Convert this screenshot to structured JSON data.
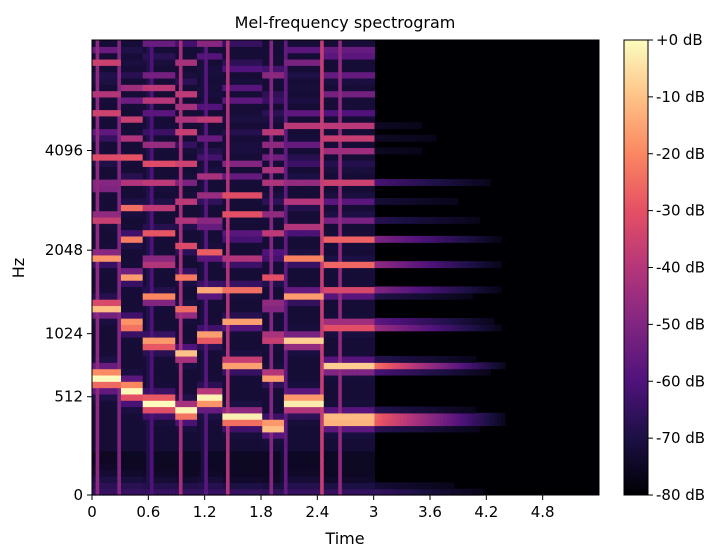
{
  "chart_data": {
    "type": "heatmap",
    "title": "Mel-frequency spectrogram",
    "xlabel": "Time",
    "ylabel": "Hz",
    "x_ticks": [
      0,
      0.6,
      1.2,
      1.8,
      2.4,
      3.0,
      3.6,
      4.2,
      4.8
    ],
    "x_tick_labels": [
      "0",
      "0.6",
      "1.2",
      "1.8",
      "2.4",
      "3",
      "3.6",
      "4.2",
      "4.8"
    ],
    "xlim": [
      0,
      5.4
    ],
    "y_scale": "mel",
    "y_ticks": [
      0,
      512,
      1024,
      2048,
      4096
    ],
    "y_tick_labels": [
      "0",
      "512",
      "1024",
      "2048",
      "4096"
    ],
    "ylim": [
      0,
      8192
    ],
    "colormap": "magma",
    "colorbar": {
      "ticks": [
        0,
        -10,
        -20,
        -30,
        -40,
        -50,
        -60,
        -70,
        -80
      ],
      "tick_labels": [
        "+0 dB",
        "-10 dB",
        "-20 dB",
        "-30 dB",
        "-40 dB",
        "-50 dB",
        "-60 dB",
        "-70 dB",
        "-80 dB"
      ],
      "range": [
        -80,
        0
      ]
    },
    "notes": {
      "sound_end_time": 3.0,
      "decay_end_time": 4.5,
      "onset_times": [
        0.05,
        0.28,
        0.62,
        0.95,
        1.2,
        1.45,
        1.9,
        2.05,
        2.45,
        2.65
      ],
      "fundamental_hz_by_segment": [
        {
          "t0": 0.0,
          "t1": 0.3,
          "f0": 650
        },
        {
          "t0": 0.3,
          "t1": 0.55,
          "f0": 560
        },
        {
          "t0": 0.55,
          "t1": 0.9,
          "f0": 470
        },
        {
          "t0": 0.9,
          "t1": 1.1,
          "f0": 420
        },
        {
          "t0": 1.1,
          "t1": 1.4,
          "f0": 500
        },
        {
          "t0": 1.4,
          "t1": 1.8,
          "f0": 380
        },
        {
          "t0": 1.8,
          "t1": 2.05,
          "f0": 330
        },
        {
          "t0": 2.05,
          "t1": 2.45,
          "f0": 480
        },
        {
          "t0": 2.45,
          "t1": 3.0,
          "f0": 370
        }
      ]
    }
  }
}
